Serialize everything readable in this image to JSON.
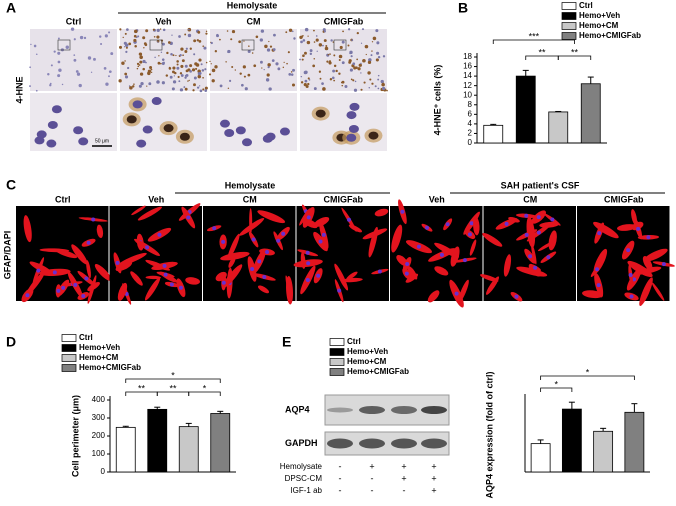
{
  "panel_a": {
    "letter": "A",
    "group": "Hemolysate",
    "columns": [
      "Ctrl",
      "Veh",
      "CM",
      "CMIGFab"
    ],
    "row_label": "4-HNE",
    "scale_bar": "50 μm"
  },
  "panel_c": {
    "letter": "C",
    "groups": [
      "Hemolysate",
      "SAH patient's CSF"
    ],
    "columns": [
      "Ctrl",
      "Veh",
      "CM",
      "CMIGFab",
      "Veh",
      "CM",
      "CMIGFab"
    ],
    "row_label": "GFAP/DAPI"
  },
  "panel_e_blot": {
    "letter": "E",
    "bands": [
      "AQP4",
      "GAPDH"
    ],
    "conditions": [
      {
        "label": "Hemolysate",
        "signs": [
          "-",
          "+",
          "+",
          "+"
        ]
      },
      {
        "label": "DPSC-CM",
        "signs": [
          "-",
          "-",
          "+",
          "+"
        ]
      },
      {
        "label": "IGF-1 ab",
        "signs": [
          "-",
          "-",
          "-",
          "+"
        ]
      }
    ]
  },
  "chart_data": [
    {
      "type": "bar",
      "letter": "B",
      "ylabel": "4-HNE⁺ cells (%)",
      "categories": [
        "Ctrl",
        "Hemo+Veh",
        "Hemo+CM",
        "Hemo+CMIGFab"
      ],
      "colors": [
        "#ffffff",
        "#000000",
        "#c8c8c8",
        "#808080"
      ],
      "values": [
        3.7,
        14,
        6.5,
        12.4
      ],
      "errors": [
        0.2,
        1.2,
        0.1,
        1.4
      ],
      "ylim": [
        0,
        18
      ],
      "yticks": [
        0,
        2,
        4,
        6,
        8,
        10,
        12,
        14,
        16,
        18
      ],
      "annotations": [
        "***",
        "**",
        "**"
      ]
    },
    {
      "type": "bar",
      "letter": "D",
      "ylabel": "Cell perimeter (μm)",
      "categories": [
        "Ctrl",
        "Hemo+Veh",
        "Hemo+CM",
        "Hemo+CMIGFab"
      ],
      "colors": [
        "#ffffff",
        "#000000",
        "#c8c8c8",
        "#808080"
      ],
      "values": [
        248,
        348,
        252,
        325
      ],
      "errors": [
        6,
        12,
        18,
        12
      ],
      "ylim": [
        0,
        400
      ],
      "yticks": [
        0,
        100,
        200,
        300,
        400
      ],
      "annotations": [
        "*",
        "**",
        "**",
        "*"
      ]
    },
    {
      "type": "bar",
      "ylabel": "AQP4 expression (fold of ctrl)",
      "categories": [
        "Ctrl",
        "Hemo+Veh",
        "Hemo+CM",
        "Hemo+CMIGFab"
      ],
      "colors": [
        "#ffffff",
        "#000000",
        "#c8c8c8",
        "#808080"
      ],
      "values": [
        1.15,
        2.55,
        1.65,
        2.42
      ],
      "errors": [
        0.15,
        0.28,
        0.12,
        0.35
      ],
      "ylim": [
        0,
        3
      ],
      "annotations": [
        "*",
        "*"
      ]
    }
  ]
}
